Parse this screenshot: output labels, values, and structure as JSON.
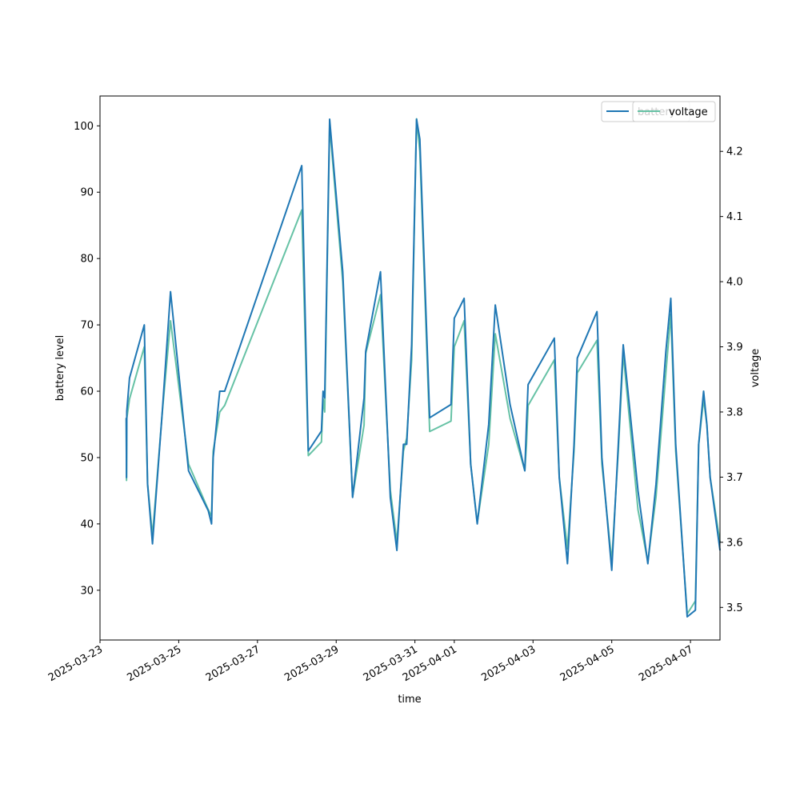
{
  "chart_data": {
    "type": "line",
    "xlabel": "time",
    "ylabel_left": "battery level",
    "ylabel_right": "voltage",
    "x_range": [
      "2025-03-23T00:00",
      "2025-04-07T18:00"
    ],
    "x_ticks": [
      "2025-03-23",
      "2025-03-25",
      "2025-03-27",
      "2025-03-29",
      "2025-03-31",
      "2025-04-01",
      "2025-04-03",
      "2025-04-05",
      "2025-04-07"
    ],
    "ylim_left": [
      22.5,
      104.5
    ],
    "yticks_left": [
      30,
      40,
      50,
      60,
      70,
      80,
      90,
      100
    ],
    "ylim_right": [
      3.45,
      4.285
    ],
    "yticks_right": [
      3.5,
      3.6,
      3.7,
      3.8,
      3.9,
      4.0,
      4.1,
      4.2
    ],
    "grid": false,
    "legend_placement": "top-right",
    "series": [
      {
        "name": "battery",
        "axis": "left",
        "color": "#1f77b4",
        "legend_label": "battery",
        "points": [
          [
            "2025-03-23T16:00",
            56
          ],
          [
            "2025-03-23T16:10",
            47
          ],
          [
            "2025-03-23T16:20",
            57
          ],
          [
            "2025-03-23T18:00",
            62
          ],
          [
            "2025-03-24T03:00",
            70
          ],
          [
            "2025-03-24T05:00",
            46
          ],
          [
            "2025-03-24T08:00",
            37
          ],
          [
            "2025-03-24T14:00",
            57
          ],
          [
            "2025-03-24T19:00",
            75
          ],
          [
            "2025-03-25T06:00",
            48
          ],
          [
            "2025-03-25T18:00",
            42
          ],
          [
            "2025-03-25T20:00",
            40
          ],
          [
            "2025-03-25T21:00",
            50
          ],
          [
            "2025-03-26T01:00",
            60
          ],
          [
            "2025-03-26T04:00",
            60
          ],
          [
            "2025-03-28T03:00",
            94
          ],
          [
            "2025-03-28T07:00",
            51
          ],
          [
            "2025-03-28T15:00",
            54
          ],
          [
            "2025-03-28T16:00",
            60
          ],
          [
            "2025-03-28T17:00",
            59
          ],
          [
            "2025-03-28T20:00",
            101
          ],
          [
            "2025-03-29T04:00",
            78
          ],
          [
            "2025-03-29T10:00",
            44
          ],
          [
            "2025-03-29T17:00",
            59
          ],
          [
            "2025-03-29T18:00",
            66
          ],
          [
            "2025-03-30T03:00",
            78
          ],
          [
            "2025-03-30T09:00",
            44
          ],
          [
            "2025-03-30T13:00",
            36
          ],
          [
            "2025-03-30T17:00",
            52
          ],
          [
            "2025-03-30T19:00",
            52
          ],
          [
            "2025-03-30T22:00",
            67
          ],
          [
            "2025-03-31T01:00",
            101
          ],
          [
            "2025-03-31T03:00",
            98
          ],
          [
            "2025-03-31T09:00",
            56
          ],
          [
            "2025-03-31T22:00",
            58
          ],
          [
            "2025-04-01T00:00",
            71
          ],
          [
            "2025-04-01T06:00",
            74
          ],
          [
            "2025-04-01T10:00",
            49
          ],
          [
            "2025-04-01T14:00",
            40
          ],
          [
            "2025-04-01T21:00",
            55
          ],
          [
            "2025-04-02T01:00",
            73
          ],
          [
            "2025-04-02T10:00",
            58
          ],
          [
            "2025-04-02T19:00",
            48
          ],
          [
            "2025-04-02T20:00",
            55
          ],
          [
            "2025-04-02T21:00",
            61
          ],
          [
            "2025-04-03T13:00",
            68
          ],
          [
            "2025-04-03T16:00",
            47
          ],
          [
            "2025-04-03T21:00",
            34
          ],
          [
            "2025-04-04T01:00",
            52
          ],
          [
            "2025-04-04T03:00",
            65
          ],
          [
            "2025-04-04T15:00",
            72
          ],
          [
            "2025-04-04T18:00",
            50
          ],
          [
            "2025-04-05T00:00",
            33
          ],
          [
            "2025-04-05T04:00",
            52
          ],
          [
            "2025-04-05T07:00",
            67
          ],
          [
            "2025-04-05T16:00",
            45
          ],
          [
            "2025-04-05T22:00",
            34
          ],
          [
            "2025-04-06T03:00",
            46
          ],
          [
            "2025-04-06T09:00",
            66
          ],
          [
            "2025-04-06T12:00",
            74
          ],
          [
            "2025-04-06T15:00",
            52
          ],
          [
            "2025-04-06T22:00",
            26
          ],
          [
            "2025-04-07T03:00",
            27
          ],
          [
            "2025-04-07T05:00",
            52
          ],
          [
            "2025-04-07T08:00",
            60
          ],
          [
            "2025-04-07T10:00",
            55
          ],
          [
            "2025-04-07T12:00",
            47
          ],
          [
            "2025-04-07T18:00",
            36
          ]
        ]
      },
      {
        "name": "voltage",
        "axis": "right",
        "color": "#66c2a5",
        "legend_label": "voltage",
        "points": [
          [
            "2025-03-23T16:00",
            3.79
          ],
          [
            "2025-03-23T16:10",
            3.695
          ],
          [
            "2025-03-23T16:20",
            3.79
          ],
          [
            "2025-03-23T18:00",
            3.82
          ],
          [
            "2025-03-24T03:00",
            3.9
          ],
          [
            "2025-03-24T05:00",
            3.69
          ],
          [
            "2025-03-24T08:00",
            3.61
          ],
          [
            "2025-03-24T14:00",
            3.8
          ],
          [
            "2025-03-24T19:00",
            3.94
          ],
          [
            "2025-03-25T06:00",
            3.72
          ],
          [
            "2025-03-25T18:00",
            3.65
          ],
          [
            "2025-03-25T20:00",
            3.64
          ],
          [
            "2025-03-25T21:00",
            3.74
          ],
          [
            "2025-03-26T01:00",
            3.8
          ],
          [
            "2025-03-26T04:00",
            3.81
          ],
          [
            "2025-03-28T03:00",
            4.11
          ],
          [
            "2025-03-28T07:00",
            3.733
          ],
          [
            "2025-03-28T15:00",
            3.754
          ],
          [
            "2025-03-28T16:00",
            3.82
          ],
          [
            "2025-03-28T17:00",
            3.8
          ],
          [
            "2025-03-28T20:00",
            4.24
          ],
          [
            "2025-03-29T04:00",
            4.0
          ],
          [
            "2025-03-29T10:00",
            3.67
          ],
          [
            "2025-03-29T17:00",
            3.78
          ],
          [
            "2025-03-29T18:00",
            3.89
          ],
          [
            "2025-03-30T03:00",
            3.98
          ],
          [
            "2025-03-30T09:00",
            3.68
          ],
          [
            "2025-03-30T13:00",
            3.6
          ],
          [
            "2025-03-30T17:00",
            3.74
          ],
          [
            "2025-03-30T19:00",
            3.76
          ],
          [
            "2025-03-30T22:00",
            3.88
          ],
          [
            "2025-03-31T01:00",
            4.25
          ],
          [
            "2025-03-31T03:00",
            4.2
          ],
          [
            "2025-03-31T09:00",
            3.77
          ],
          [
            "2025-03-31T22:00",
            3.786
          ],
          [
            "2025-04-01T00:00",
            3.9
          ],
          [
            "2025-04-01T06:00",
            3.94
          ],
          [
            "2025-04-01T10:00",
            3.72
          ],
          [
            "2025-04-01T14:00",
            3.63
          ],
          [
            "2025-04-01T21:00",
            3.75
          ],
          [
            "2025-04-02T01:00",
            3.92
          ],
          [
            "2025-04-02T10:00",
            3.79
          ],
          [
            "2025-04-02T19:00",
            3.71
          ],
          [
            "2025-04-02T20:00",
            3.75
          ],
          [
            "2025-04-02T21:00",
            3.81
          ],
          [
            "2025-04-03T13:00",
            3.88
          ],
          [
            "2025-04-03T16:00",
            3.7
          ],
          [
            "2025-04-03T21:00",
            3.59
          ],
          [
            "2025-04-04T01:00",
            3.74
          ],
          [
            "2025-04-04T03:00",
            3.86
          ],
          [
            "2025-04-04T15:00",
            3.91
          ],
          [
            "2025-04-04T18:00",
            3.72
          ],
          [
            "2025-04-05T00:00",
            3.57
          ],
          [
            "2025-04-05T04:00",
            3.74
          ],
          [
            "2025-04-05T07:00",
            3.89
          ],
          [
            "2025-04-05T16:00",
            3.65
          ],
          [
            "2025-04-05T22:00",
            3.57
          ],
          [
            "2025-04-06T03:00",
            3.67
          ],
          [
            "2025-04-06T09:00",
            3.86
          ],
          [
            "2025-04-06T12:00",
            3.95
          ],
          [
            "2025-04-06T15:00",
            3.74
          ],
          [
            "2025-04-06T22:00",
            3.49
          ],
          [
            "2025-04-07T03:00",
            3.51
          ],
          [
            "2025-04-07T05:00",
            3.75
          ],
          [
            "2025-04-07T08:00",
            3.82
          ],
          [
            "2025-04-07T10:00",
            3.78
          ],
          [
            "2025-04-07T12:00",
            3.7
          ],
          [
            "2025-04-07T18:00",
            3.6
          ]
        ]
      }
    ]
  }
}
